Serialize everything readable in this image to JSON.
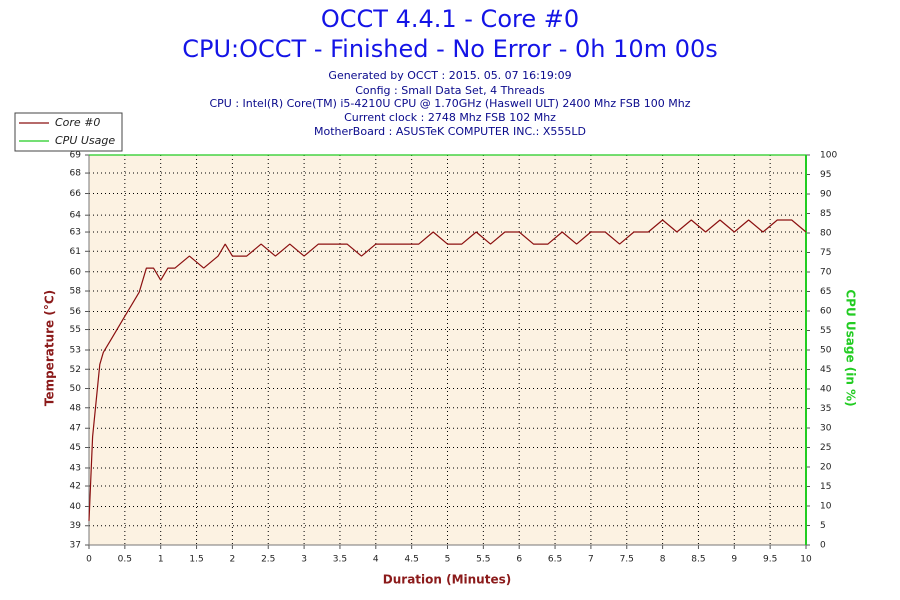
{
  "chart_data": {
    "type": "line",
    "title": "OCCT 4.4.1 - Core #0",
    "subtitle": "CPU:OCCT - Finished - No Error - 0h 10m 00s",
    "info": [
      "Generated by OCCT : 2015. 05. 07 16:19:09",
      "Config : Small Data Set, 4 Threads",
      "CPU : Intel(R) Core(TM) i5-4210U CPU @ 1.70GHz (Haswell ULT) 2400 Mhz FSB 100 Mhz",
      "Current clock : 2748 Mhz FSB 102 Mhz",
      "MotherBoard : ASUSTeK COMPUTER INC.: X555LD"
    ],
    "x_label": "Duration (Minutes)",
    "y_label": "Temperature (°C)",
    "y2_label": "CPU Usage (in %)",
    "legend": "top-left",
    "grid": true,
    "xlim": [
      0,
      10
    ],
    "xticks": [
      0,
      0.5,
      1,
      1.5,
      2,
      2.5,
      3,
      3.5,
      4,
      4.5,
      5,
      5.5,
      6,
      6.5,
      7,
      7.5,
      8,
      8.5,
      9,
      9.5,
      10
    ],
    "ylim": [
      37,
      69.4
    ],
    "yticks": [
      37,
      {
        "value": 38.6,
        "label": "39"
      },
      {
        "value": 40.2,
        "label": "40"
      },
      {
        "value": 41.9,
        "label": "42"
      },
      {
        "value": 43.4,
        "label": "43"
      },
      {
        "value": 45.1,
        "label": "45"
      },
      {
        "value": 46.7,
        "label": "47"
      },
      {
        "value": 48.4,
        "label": "48"
      },
      50,
      {
        "value": 51.6,
        "label": "52"
      },
      {
        "value": 53.2,
        "label": "53"
      },
      {
        "value": 54.9,
        "label": "55"
      },
      {
        "value": 56.4,
        "label": "56"
      },
      {
        "value": 58.1,
        "label": "58"
      },
      {
        "value": 59.7,
        "label": "60"
      },
      {
        "value": 61.4,
        "label": "61"
      },
      63,
      {
        "value": 64.4,
        "label": "64"
      },
      {
        "value": 66.2,
        "label": "66"
      },
      {
        "value": 67.9,
        "label": "68"
      },
      {
        "value": 69.4,
        "label": "69"
      }
    ],
    "y2lim": [
      0,
      100
    ],
    "y2ticks": [
      0,
      5,
      10,
      15,
      20,
      25,
      30,
      35,
      40,
      45,
      50,
      55,
      60,
      65,
      70,
      75,
      80,
      85,
      90,
      95,
      100
    ],
    "series": [
      {
        "name": "Core #0",
        "color": "#8b1010",
        "x": [
          0,
          0.05,
          0.1,
          0.15,
          0.2,
          0.3,
          0.4,
          0.5,
          0.6,
          0.7,
          0.8,
          0.9,
          1.0,
          1.1,
          1.2,
          1.4,
          1.6,
          1.8,
          1.9,
          2.0,
          2.2,
          2.4,
          2.6,
          2.8,
          3.0,
          3.2,
          3.4,
          3.6,
          3.8,
          4.0,
          4.2,
          4.4,
          4.6,
          4.8,
          5.0,
          5.2,
          5.4,
          5.6,
          5.8,
          6.0,
          6.2,
          6.4,
          6.6,
          6.8,
          7.0,
          7.2,
          7.4,
          7.6,
          7.8,
          8.0,
          8.2,
          8.4,
          8.6,
          8.8,
          9.0,
          9.2,
          9.4,
          9.6,
          9.8,
          10.0
        ],
        "values": [
          39,
          46,
          49,
          52,
          53,
          54,
          55,
          56,
          57,
          58,
          60,
          60,
          59,
          60,
          60,
          61,
          60,
          61,
          62,
          61,
          61,
          62,
          61,
          62,
          61,
          62,
          62,
          62,
          61,
          62,
          62,
          62,
          62,
          63,
          62,
          62,
          63,
          62,
          63,
          63,
          62,
          62,
          63,
          62,
          63,
          63,
          62,
          63,
          63,
          64,
          63,
          64,
          63,
          64,
          63,
          64,
          63,
          64,
          64,
          63
        ]
      },
      {
        "name": "CPU Usage",
        "color": "#22cc22",
        "axis": "y2",
        "x": [
          0,
          10
        ],
        "values": [
          100,
          100
        ]
      }
    ]
  }
}
